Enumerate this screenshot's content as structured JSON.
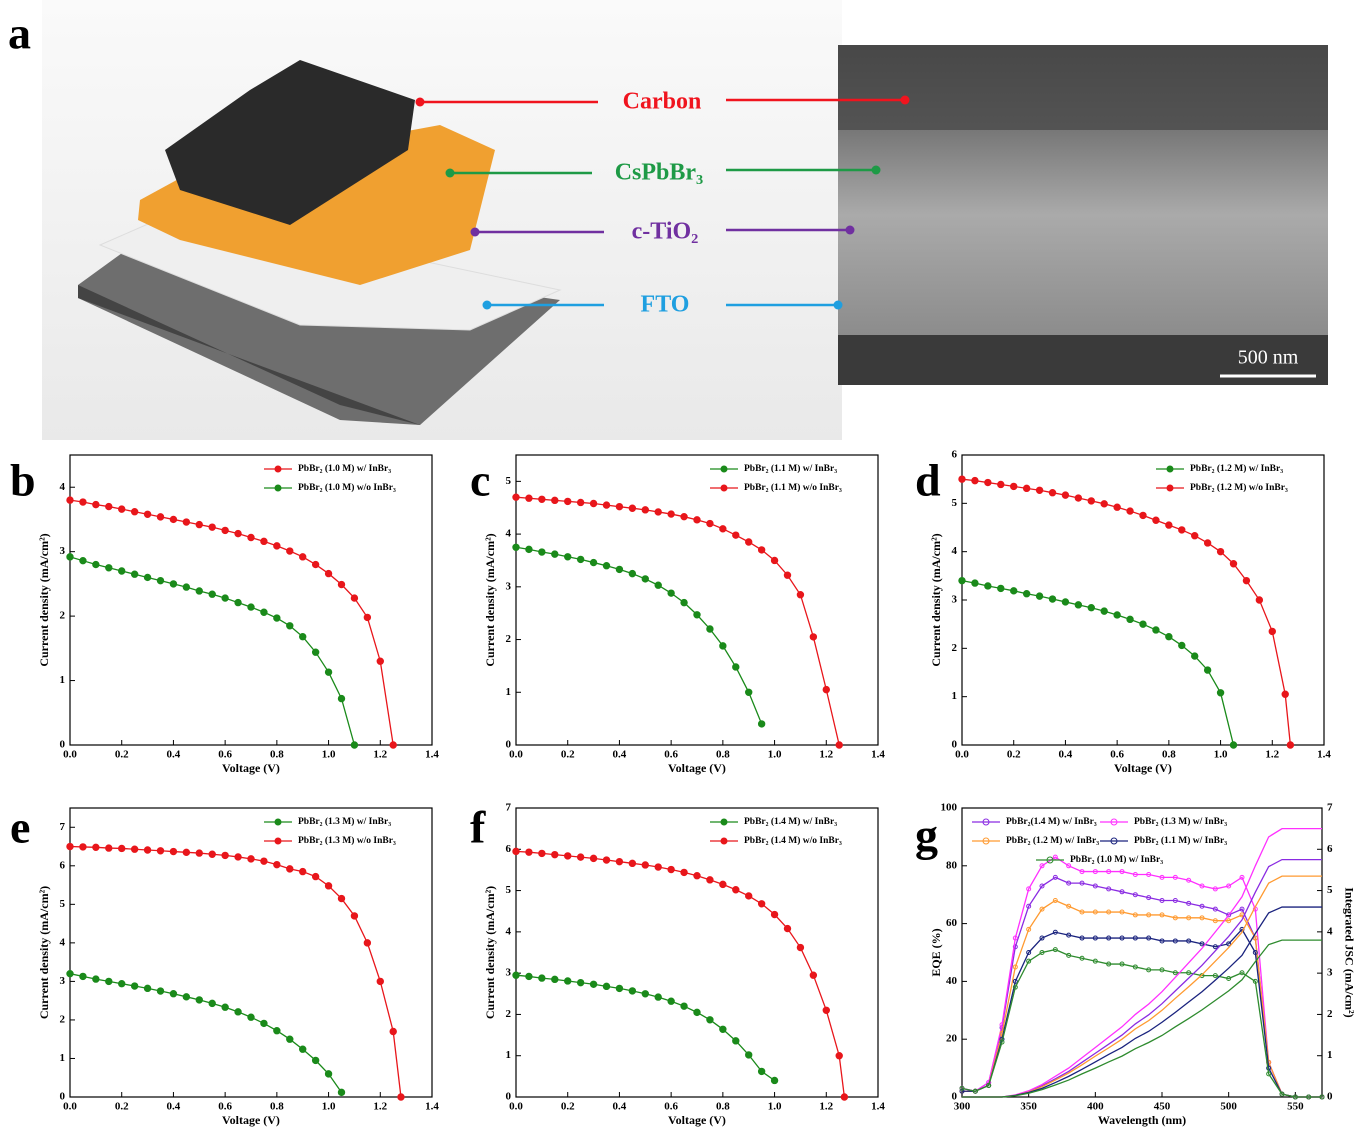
{
  "panel_a": {
    "label": "a",
    "layers": [
      {
        "name": "Carbon",
        "color": "#f0141e"
      },
      {
        "name": "CsPbBr₃",
        "color": "#1e9a46"
      },
      {
        "name": "c-TiO₂",
        "color": "#7030a0"
      },
      {
        "name": "FTO",
        "color": "#1f9fe0"
      }
    ],
    "scale_bar": "500 nm"
  },
  "chart_data": [
    {
      "type": "line",
      "label": "b",
      "xlabel": "Voltage (V)",
      "ylabel": "Current density (mA/cm²)",
      "xlim": [
        0,
        1.4
      ],
      "ylim": [
        0,
        4.5
      ],
      "xticks": [
        {
          "value": 0,
          "label": "0.0"
        },
        0.2,
        0.4,
        0.6,
        0.8,
        {
          "value": 1,
          "label": "1.0"
        },
        1.2,
        1.4
      ],
      "yticks": [
        0,
        1,
        2,
        3,
        4
      ],
      "legend": "upper right",
      "markers": true,
      "x": [
        0,
        0.05,
        0.1,
        0.15,
        0.2,
        0.25,
        0.3,
        0.35,
        0.4,
        0.45,
        0.5,
        0.55,
        0.6,
        0.65,
        0.7,
        0.75,
        0.8,
        0.85,
        0.9,
        0.95,
        1.0,
        1.05,
        1.1,
        1.15,
        1.2,
        1.25
      ],
      "series": [
        {
          "name": "PbBr₂ (1.0 M) w/ InBr₃",
          "color": "#e8161b",
          "values": [
            3.8,
            3.77,
            3.73,
            3.7,
            3.66,
            3.62,
            3.58,
            3.54,
            3.5,
            3.46,
            3.42,
            3.38,
            3.33,
            3.28,
            3.22,
            3.16,
            3.09,
            3.01,
            2.92,
            2.8,
            2.66,
            2.49,
            2.28,
            1.98,
            1.3,
            0
          ]
        },
        {
          "name": "PbBr₂ (1.0 M) w/o InBr₃",
          "color": "#1a8a1a",
          "values": [
            2.92,
            2.86,
            2.8,
            2.75,
            2.7,
            2.65,
            2.6,
            2.55,
            2.5,
            2.45,
            2.39,
            2.34,
            2.28,
            2.21,
            2.14,
            2.06,
            1.97,
            1.85,
            1.68,
            1.44,
            1.13,
            0.72,
            0,
            null,
            null,
            null
          ]
        }
      ]
    },
    {
      "type": "line",
      "label": "c",
      "xlabel": "Voltage (V)",
      "ylabel": "Current density (mA/cm²)",
      "xlim": [
        0,
        1.4
      ],
      "ylim": [
        0,
        5.5
      ],
      "xticks": [
        {
          "value": 0,
          "label": "0.0"
        },
        0.2,
        0.4,
        0.6,
        0.8,
        {
          "value": 1,
          "label": "1.0"
        },
        1.2,
        1.4
      ],
      "yticks": [
        0,
        1,
        2,
        3,
        4,
        5
      ],
      "legend": "upper right",
      "markers": true,
      "x": [
        0,
        0.05,
        0.1,
        0.15,
        0.2,
        0.25,
        0.3,
        0.35,
        0.4,
        0.45,
        0.5,
        0.55,
        0.6,
        0.65,
        0.7,
        0.75,
        0.8,
        0.85,
        0.9,
        0.95,
        1.0,
        1.05,
        1.1,
        1.15,
        1.2,
        1.25
      ],
      "series": [
        {
          "name": "PbBr₂ (1.1 M) w/ InBr₃",
          "color": "#1a8a1a",
          "values": [
            3.75,
            3.71,
            3.66,
            3.62,
            3.57,
            3.52,
            3.46,
            3.4,
            3.33,
            3.25,
            3.15,
            3.03,
            2.88,
            2.7,
            2.47,
            2.2,
            1.88,
            1.48,
            1.0,
            0.4,
            null,
            null,
            null,
            null,
            null,
            null
          ]
        },
        {
          "name": "PbBr₂ (1.1 M) w/o InBr₃",
          "color": "#e8161b",
          "values": [
            4.7,
            4.68,
            4.66,
            4.64,
            4.62,
            4.6,
            4.58,
            4.55,
            4.52,
            4.49,
            4.46,
            4.42,
            4.38,
            4.33,
            4.27,
            4.2,
            4.1,
            3.98,
            3.85,
            3.7,
            3.5,
            3.22,
            2.85,
            2.05,
            1.05,
            0
          ]
        }
      ]
    },
    {
      "type": "line",
      "label": "d",
      "xlabel": "Voltage (V)",
      "ylabel": "Current density (mA/cm²)",
      "xlim": [
        0,
        1.4
      ],
      "ylim": [
        0,
        6
      ],
      "xticks": [
        {
          "value": 0,
          "label": "0.0"
        },
        0.2,
        0.4,
        0.6,
        0.8,
        {
          "value": 1,
          "label": "1.0"
        },
        1.2,
        1.4
      ],
      "yticks": [
        0,
        1,
        2,
        3,
        4,
        5,
        6
      ],
      "legend": "upper right",
      "markers": true,
      "x": [
        0,
        0.05,
        0.1,
        0.15,
        0.2,
        0.25,
        0.3,
        0.35,
        0.4,
        0.45,
        0.5,
        0.55,
        0.6,
        0.65,
        0.7,
        0.75,
        0.8,
        0.85,
        0.9,
        0.95,
        1.0,
        1.05,
        1.1,
        1.15,
        1.2,
        1.25,
        1.27
      ],
      "series": [
        {
          "name": "PbBr₂ (1.2 M) w/ InBr₃",
          "color": "#1a8a1a",
          "values": [
            3.4,
            3.35,
            3.29,
            3.24,
            3.19,
            3.13,
            3.08,
            3.02,
            2.96,
            2.9,
            2.84,
            2.77,
            2.69,
            2.6,
            2.5,
            2.38,
            2.24,
            2.06,
            1.84,
            1.55,
            1.08,
            0,
            null,
            null,
            null,
            null,
            null
          ]
        },
        {
          "name": "PbBr₂ (1.2 M) w/o InBr₃",
          "color": "#e8161b",
          "values": [
            5.5,
            5.47,
            5.43,
            5.39,
            5.35,
            5.31,
            5.27,
            5.22,
            5.17,
            5.11,
            5.05,
            4.99,
            4.92,
            4.84,
            4.75,
            4.65,
            4.55,
            4.45,
            4.33,
            4.18,
            4.0,
            3.75,
            3.4,
            3.0,
            2.35,
            1.05,
            0
          ]
        }
      ]
    },
    {
      "type": "line",
      "label": "e",
      "xlabel": "Voltage (V)",
      "ylabel": "Current density (mA/cm²)",
      "xlim": [
        0,
        1.4
      ],
      "ylim": [
        0,
        7.5
      ],
      "xticks": [
        {
          "value": 0,
          "label": "0.0"
        },
        0.2,
        0.4,
        0.6,
        0.8,
        {
          "value": 1,
          "label": "1.0"
        },
        1.2,
        1.4
      ],
      "yticks": [
        0,
        1,
        2,
        3,
        4,
        5,
        6,
        7
      ],
      "legend": "upper right",
      "markers": true,
      "x": [
        0,
        0.05,
        0.1,
        0.15,
        0.2,
        0.25,
        0.3,
        0.35,
        0.4,
        0.45,
        0.5,
        0.55,
        0.6,
        0.65,
        0.7,
        0.75,
        0.8,
        0.85,
        0.9,
        0.95,
        1.0,
        1.05,
        1.1,
        1.15,
        1.2,
        1.25,
        1.28
      ],
      "series": [
        {
          "name": "PbBr₂ (1.3 M) w/ InBr₃",
          "color": "#1a8a1a",
          "values": [
            3.2,
            3.13,
            3.06,
            3.0,
            2.94,
            2.88,
            2.82,
            2.75,
            2.68,
            2.6,
            2.52,
            2.43,
            2.33,
            2.21,
            2.07,
            1.91,
            1.72,
            1.5,
            1.24,
            0.95,
            0.6,
            0.12,
            null,
            null,
            null,
            null,
            null
          ]
        },
        {
          "name": "PbBr₂ (1.3 M) w/o InBr₃",
          "color": "#e8161b",
          "values": [
            6.5,
            6.49,
            6.48,
            6.46,
            6.45,
            6.43,
            6.41,
            6.39,
            6.37,
            6.35,
            6.33,
            6.3,
            6.27,
            6.23,
            6.18,
            6.12,
            6.03,
            5.92,
            5.85,
            5.72,
            5.48,
            5.15,
            4.7,
            4.0,
            3.0,
            1.7,
            0
          ]
        }
      ]
    },
    {
      "type": "line",
      "label": "f",
      "xlabel": "Voltage (V)",
      "ylabel": "Current density (mA/cm²)",
      "xlim": [
        0,
        1.4
      ],
      "ylim": [
        0,
        7
      ],
      "xticks": [
        {
          "value": 0,
          "label": "0.0"
        },
        0.2,
        0.4,
        0.6,
        0.8,
        {
          "value": 1,
          "label": "1.0"
        },
        1.2,
        1.4
      ],
      "yticks": [
        0,
        1,
        2,
        3,
        4,
        5,
        6,
        7
      ],
      "legend": "upper right",
      "markers": true,
      "x": [
        0,
        0.05,
        0.1,
        0.15,
        0.2,
        0.25,
        0.3,
        0.35,
        0.4,
        0.45,
        0.5,
        0.55,
        0.6,
        0.65,
        0.7,
        0.75,
        0.8,
        0.85,
        0.9,
        0.95,
        1.0,
        1.05,
        1.1,
        1.15,
        1.2,
        1.25,
        1.27
      ],
      "series": [
        {
          "name": "PbBr₂ (1.4 M) w/ InBr₃",
          "color": "#1a8a1a",
          "values": [
            2.95,
            2.92,
            2.88,
            2.85,
            2.81,
            2.77,
            2.73,
            2.68,
            2.63,
            2.57,
            2.5,
            2.42,
            2.32,
            2.2,
            2.05,
            1.87,
            1.64,
            1.36,
            1.02,
            0.62,
            0.4,
            null,
            null,
            null,
            null,
            null,
            null
          ]
        },
        {
          "name": "PbBr₂ (1.4 M) w/o InBr₃",
          "color": "#e8161b",
          "values": [
            5.95,
            5.93,
            5.9,
            5.87,
            5.84,
            5.81,
            5.78,
            5.74,
            5.7,
            5.66,
            5.62,
            5.57,
            5.51,
            5.44,
            5.36,
            5.26,
            5.15,
            5.02,
            4.87,
            4.68,
            4.42,
            4.08,
            3.62,
            2.95,
            2.1,
            1.0,
            0
          ]
        }
      ]
    },
    {
      "type": "line",
      "label": "g",
      "xlabel": "Wavelength (nm)",
      "ylabel": "EQE (%)",
      "y2label": "Integrated JSC (mA/cm²)",
      "xlim": [
        300,
        570
      ],
      "ylim": [
        0,
        100
      ],
      "y2lim": [
        0,
        7
      ],
      "xticks": [
        300,
        350,
        400,
        450,
        500,
        550
      ],
      "yticks": [
        0,
        20,
        40,
        60,
        80,
        100
      ],
      "y2ticks": [
        0,
        1,
        2,
        3,
        4,
        5,
        6,
        7
      ],
      "legend": "upper left",
      "legend_columns": 2,
      "x": [
        300,
        310,
        320,
        330,
        340,
        350,
        360,
        370,
        380,
        390,
        400,
        410,
        420,
        430,
        440,
        450,
        460,
        470,
        480,
        490,
        500,
        510,
        520,
        530,
        540,
        550,
        560,
        570
      ],
      "series": [
        {
          "name": "PbBr₂(1.4 M) w/ InBr₃",
          "color": "#8a2be2",
          "markers": true,
          "values": [
            3,
            2,
            5,
            24,
            52,
            66,
            73,
            76,
            74,
            74,
            73,
            72,
            71,
            70,
            69,
            68,
            68,
            67,
            66,
            65,
            63,
            65,
            55,
            12,
            1,
            0,
            0,
            0
          ]
        },
        {
          "name": "PbBr₂ (1.3 M) w/ InBr₃",
          "color": "#ff30ff",
          "markers": true,
          "values": [
            3,
            2,
            5,
            25,
            55,
            72,
            80,
            83,
            80,
            78,
            78,
            78,
            78,
            77,
            77,
            76,
            76,
            75,
            73,
            72,
            73,
            76,
            65,
            12,
            1,
            0,
            0,
            0
          ]
        },
        {
          "name": "PbBr₂ (1.2 M) w/ InBr₃",
          "color": "#ff9a30",
          "markers": true,
          "values": [
            2,
            2,
            4,
            22,
            45,
            58,
            65,
            68,
            66,
            64,
            64,
            64,
            64,
            63,
            63,
            63,
            62,
            62,
            62,
            61,
            61,
            63,
            55,
            12,
            1,
            0,
            0,
            0
          ]
        },
        {
          "name": "PbBr₂ (1.1 M) w/ InBr₃",
          "color": "#1a237e",
          "markers": true,
          "values": [
            2,
            2,
            4,
            20,
            40,
            50,
            55,
            57,
            56,
            55,
            55,
            55,
            55,
            55,
            55,
            54,
            54,
            54,
            53,
            52,
            53,
            58,
            50,
            10,
            1,
            0,
            0,
            0
          ]
        },
        {
          "name": "PbBr₂ (1.0 M) w/ InBr₃",
          "color": "#2e8b2e",
          "markers": true,
          "values": [
            3,
            2,
            4,
            19,
            38,
            47,
            50,
            51,
            49,
            48,
            47,
            46,
            46,
            45,
            44,
            44,
            43,
            43,
            42,
            42,
            41,
            43,
            40,
            8,
            1,
            0,
            0,
            0
          ]
        },
        {
          "axis": "y2",
          "color": "#8a2be2",
          "values": [
            0,
            0,
            0,
            0,
            0.04,
            0.13,
            0.27,
            0.44,
            0.62,
            0.84,
            1.06,
            1.28,
            1.5,
            1.77,
            1.99,
            2.26,
            2.57,
            2.88,
            3.19,
            3.54,
            3.89,
            4.29,
            4.96,
            5.58,
            5.75,
            5.75,
            5.75,
            5.75
          ]
        },
        {
          "axis": "y2",
          "color": "#ff30ff",
          "values": [
            0,
            0,
            0,
            0,
            0.05,
            0.15,
            0.3,
            0.5,
            0.7,
            0.95,
            1.2,
            1.45,
            1.7,
            2.0,
            2.25,
            2.55,
            2.9,
            3.25,
            3.6,
            4.0,
            4.4,
            4.85,
            5.6,
            6.3,
            6.5,
            6.5,
            6.5,
            6.5
          ]
        },
        {
          "axis": "y2",
          "color": "#ff9a30",
          "values": [
            0,
            0,
            0,
            0,
            0.04,
            0.12,
            0.25,
            0.41,
            0.58,
            0.78,
            0.99,
            1.19,
            1.4,
            1.65,
            1.85,
            2.1,
            2.39,
            2.67,
            2.96,
            3.29,
            3.62,
            3.99,
            4.61,
            5.18,
            5.35,
            5.35,
            5.35,
            5.35
          ]
        },
        {
          "axis": "y2",
          "color": "#1a237e",
          "values": [
            0,
            0,
            0,
            0,
            0.04,
            0.11,
            0.21,
            0.35,
            0.5,
            0.67,
            0.85,
            1.03,
            1.2,
            1.42,
            1.59,
            1.81,
            2.05,
            2.3,
            2.55,
            2.83,
            3.12,
            3.43,
            3.96,
            4.46,
            4.6,
            4.6,
            4.6,
            4.6
          ]
        },
        {
          "axis": "y2",
          "color": "#2e8b2e",
          "values": [
            0,
            0,
            0,
            0,
            0.03,
            0.09,
            0.18,
            0.29,
            0.41,
            0.56,
            0.7,
            0.85,
            0.99,
            1.17,
            1.32,
            1.49,
            1.7,
            1.9,
            2.11,
            2.34,
            2.57,
            2.84,
            3.28,
            3.69,
            3.8,
            3.8,
            3.8,
            3.8
          ]
        }
      ]
    }
  ]
}
